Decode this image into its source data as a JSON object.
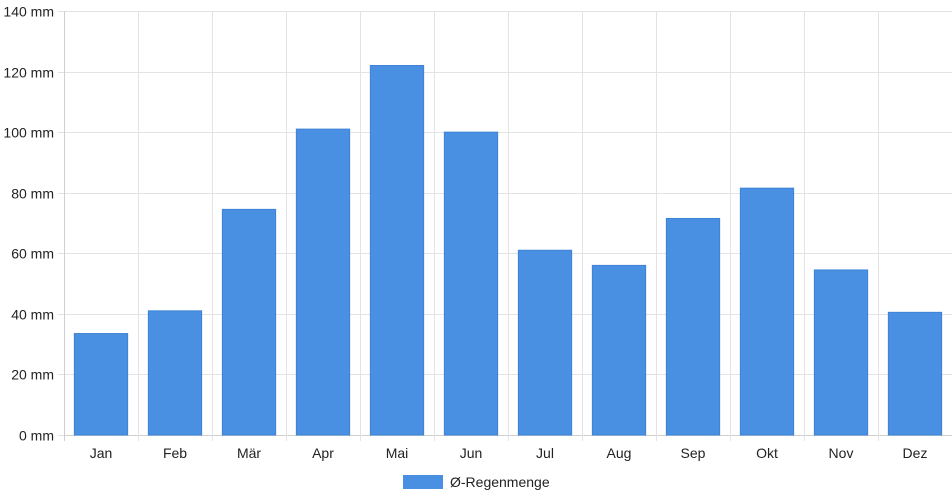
{
  "chart_data": {
    "type": "bar",
    "categories": [
      "Jan",
      "Feb",
      "Mär",
      "Apr",
      "Mai",
      "Jun",
      "Jul",
      "Aug",
      "Sep",
      "Okt",
      "Nov",
      "Dez"
    ],
    "series": [
      {
        "name": "Ø-Regenmenge",
        "values": [
          33.5,
          41.0,
          74.5,
          101.0,
          122.0,
          100.0,
          61.0,
          56.0,
          71.5,
          81.5,
          54.5,
          40.5
        ],
        "color": "#4a90e2"
      }
    ],
    "xlabel": "",
    "ylabel": "",
    "ylim": [
      0,
      140
    ],
    "yticks": [
      0,
      20,
      40,
      60,
      80,
      100,
      120,
      140
    ],
    "y_unit_suffix": " mm",
    "grid": true,
    "legend": "bottom-center"
  },
  "colors": {
    "grid": "#e3e3e3",
    "axis": "#cfcfcf",
    "text": "#222222"
  }
}
